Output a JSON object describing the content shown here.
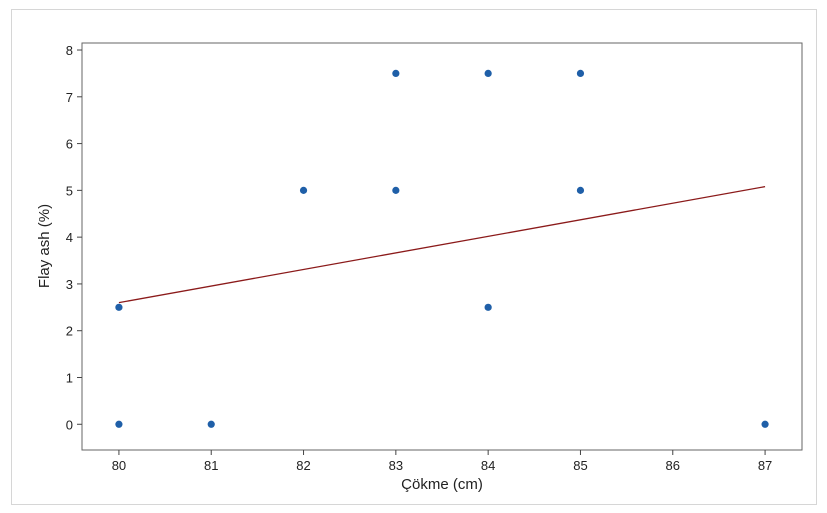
{
  "chart_data": {
    "type": "scatter",
    "title": "",
    "xlabel": "Çökme (cm)",
    "ylabel": "Flay ash (%)",
    "xlim": [
      79.6,
      87.4
    ],
    "ylim": [
      -0.55,
      8.15
    ],
    "xticks": [
      80,
      81,
      82,
      83,
      84,
      85,
      86,
      87
    ],
    "yticks": [
      0,
      1,
      2,
      3,
      4,
      5,
      6,
      7,
      8
    ],
    "grid": false,
    "legend": "none",
    "series": [
      {
        "points": [
          {
            "x": 80,
            "y": 0
          },
          {
            "x": 80,
            "y": 2.5
          },
          {
            "x": 81,
            "y": 0
          },
          {
            "x": 82,
            "y": 5
          },
          {
            "x": 83,
            "y": 5
          },
          {
            "x": 83,
            "y": 7.5
          },
          {
            "x": 84,
            "y": 2.5
          },
          {
            "x": 84,
            "y": 7.5
          },
          {
            "x": 85,
            "y": 5
          },
          {
            "x": 85,
            "y": 7.5
          },
          {
            "x": 87,
            "y": 0
          }
        ],
        "color": "#1f5fa8"
      }
    ],
    "fit_line": {
      "x": [
        80,
        87
      ],
      "y": [
        2.6,
        5.08
      ],
      "color": "#8b1a1a"
    }
  }
}
